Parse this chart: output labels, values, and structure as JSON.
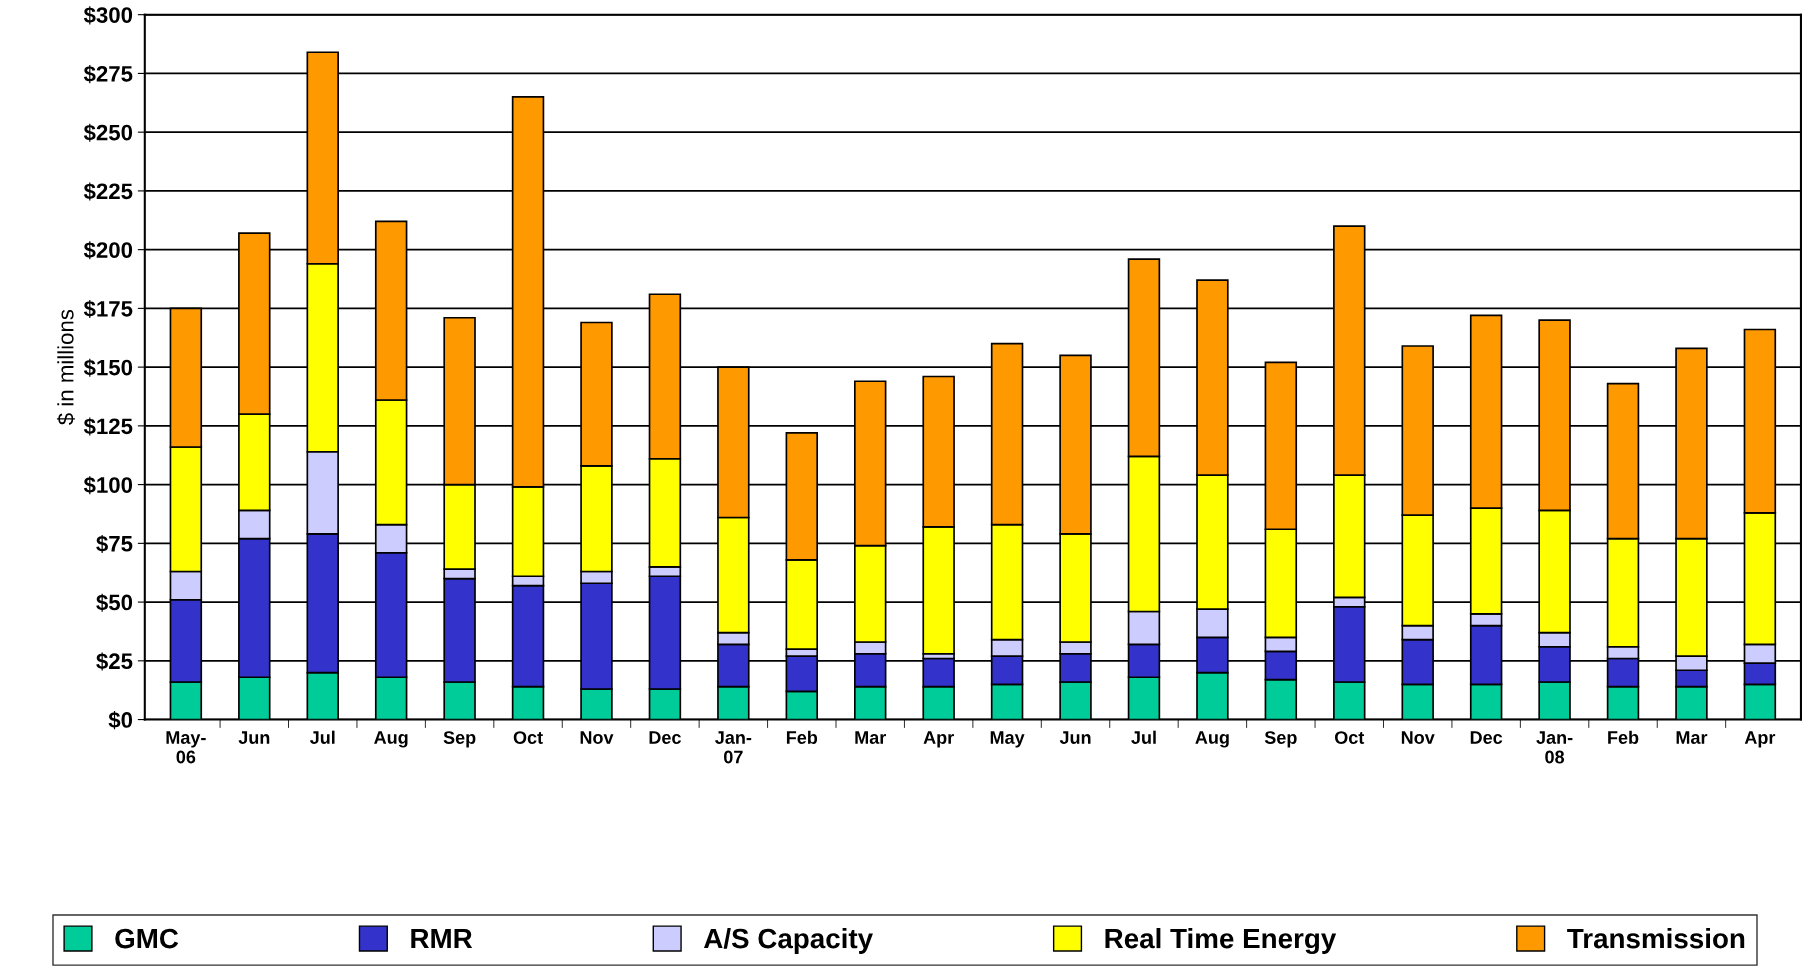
{
  "chart_data": {
    "type": "bar",
    "stacked": true,
    "ylabel": "$ in millions",
    "categories": [
      "May-\n06",
      "Jun",
      "Jul",
      "Aug",
      "Sep",
      "Oct",
      "Nov",
      "Dec",
      "Jan-\n07",
      "Feb",
      "Mar",
      "Apr",
      "May",
      "Jun",
      "Jul",
      "Aug",
      "Sep",
      "Oct",
      "Nov",
      "Dec",
      "Jan-\n08",
      "Feb",
      "Mar",
      "Apr"
    ],
    "series": [
      {
        "name": "GMC",
        "color": "#00cc99",
        "values": [
          16,
          18,
          20,
          18,
          16,
          14,
          13,
          13,
          14,
          12,
          14,
          14,
          15,
          16,
          18,
          20,
          17,
          16,
          15,
          15,
          16,
          14,
          14,
          15
        ]
      },
      {
        "name": "RMR",
        "color": "#3333cc",
        "values": [
          35,
          59,
          59,
          53,
          44,
          43,
          45,
          48,
          18,
          15,
          14,
          12,
          12,
          12,
          14,
          15,
          12,
          32,
          19,
          25,
          15,
          12,
          7,
          9
        ]
      },
      {
        "name": "A/S Capacity",
        "color": "#ccccff",
        "values": [
          12,
          12,
          35,
          12,
          4,
          4,
          5,
          4,
          5,
          3,
          5,
          2,
          7,
          5,
          14,
          12,
          6,
          4,
          6,
          5,
          6,
          5,
          6,
          8
        ]
      },
      {
        "name": "Real Time Energy",
        "color": "#ffff00",
        "values": [
          53,
          41,
          80,
          53,
          36,
          38,
          45,
          46,
          49,
          38,
          41,
          54,
          49,
          46,
          66,
          57,
          46,
          52,
          47,
          45,
          52,
          46,
          50,
          56
        ]
      },
      {
        "name": "Transmission",
        "color": "#ff9900",
        "values": [
          59,
          77,
          90,
          76,
          71,
          166,
          61,
          70,
          64,
          54,
          70,
          64,
          77,
          76,
          84,
          83,
          71,
          106,
          72,
          82,
          81,
          66,
          81,
          78
        ]
      }
    ],
    "ylim": [
      0,
      300
    ],
    "yticks": [
      {
        "value": 0,
        "label": "$0"
      },
      {
        "value": 25,
        "label": "$25"
      },
      {
        "value": 50,
        "label": "$50"
      },
      {
        "value": 75,
        "label": "$75"
      },
      {
        "value": 100,
        "label": "$100"
      },
      {
        "value": 125,
        "label": "$125"
      },
      {
        "value": 150,
        "label": "$150"
      },
      {
        "value": 175,
        "label": "$175"
      },
      {
        "value": 200,
        "label": "$200"
      },
      {
        "value": 225,
        "label": "$225"
      },
      {
        "value": 250,
        "label": "$250"
      },
      {
        "value": 275,
        "label": "$275"
      },
      {
        "value": 300,
        "label": "$300"
      }
    ],
    "grid": "y",
    "legend": "bottom"
  }
}
